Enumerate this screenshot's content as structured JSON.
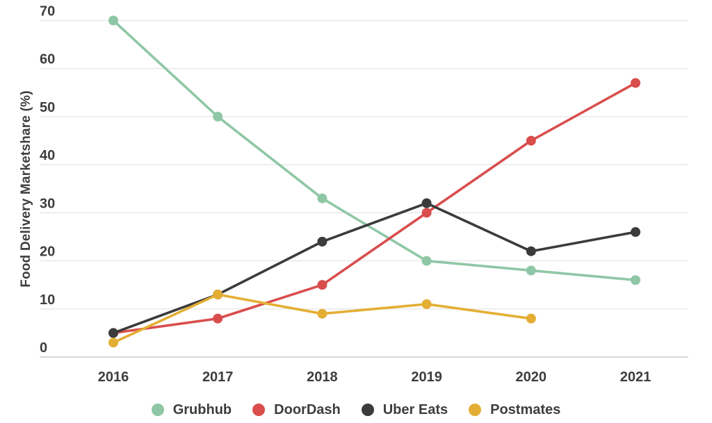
{
  "chart_data": {
    "type": "line",
    "title": "",
    "ylabel": "Food Delivery Marketshare (%)",
    "xlabel": "",
    "categories": [
      "2016",
      "2017",
      "2018",
      "2019",
      "2020",
      "2021"
    ],
    "series": [
      {
        "name": "Grubhub",
        "color": "#8FC7A6",
        "values": [
          70,
          50,
          33,
          20,
          18,
          16
        ]
      },
      {
        "name": "DoorDash",
        "color": "#D94D4D",
        "values": [
          5,
          8,
          15,
          30,
          45,
          57
        ]
      },
      {
        "name": "Uber Eats",
        "color": "#3B3B3B",
        "values": [
          5,
          13,
          24,
          32,
          22,
          26
        ]
      },
      {
        "name": "Postmates",
        "color": "#E3AE33",
        "values": [
          3,
          13,
          9,
          11,
          8,
          null
        ]
      }
    ],
    "ylim": [
      0,
      70
    ],
    "yticks": [
      0,
      10,
      20,
      30,
      40,
      50,
      60,
      70
    ],
    "grid": true,
    "legend_position": "bottom"
  },
  "colors": {
    "grid": "#E4E4E4",
    "baseline": "#CBCBCB",
    "text": "#3D3D3D",
    "background": "#FFFFFF"
  }
}
